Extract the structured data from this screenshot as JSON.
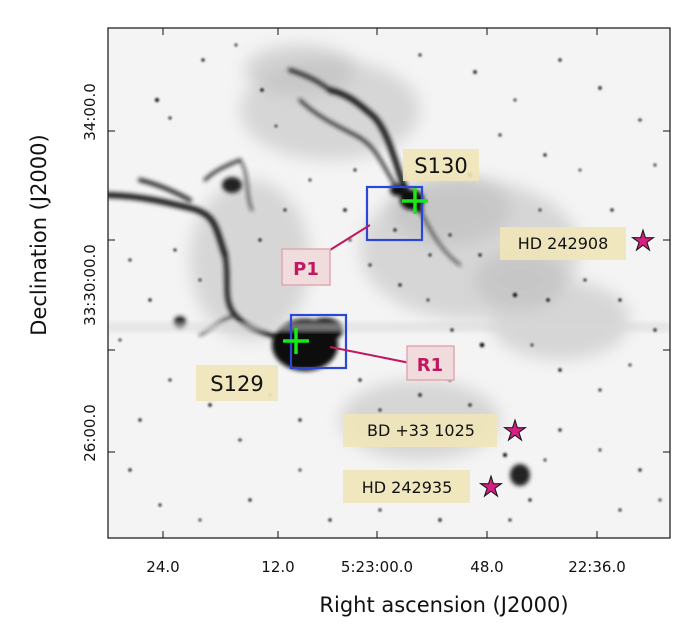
{
  "figure": {
    "xlabel": "Right ascension (J2000)",
    "ylabel": "Declination (J2000)",
    "x_ticks": [
      "24.0",
      "12.0",
      "5:23:00.0",
      "48.0",
      "22:36.0"
    ],
    "y_ticks": [
      "34:00.0",
      "33:30:00.0",
      "26:00.0"
    ]
  },
  "regions": {
    "s130": "S130",
    "s129": "S129"
  },
  "probes": {
    "p1": "P1",
    "r1": "R1"
  },
  "stars": {
    "hd242908": "HD 242908",
    "bd33": "BD +33 1025",
    "hd242935": "HD 242935"
  },
  "colors": {
    "label_bg": "#efe6b8",
    "box": "#2a47d6",
    "cross": "#18e818",
    "probe_text": "#c0175f",
    "probe_bg": "#f0dcdc",
    "probe_border": "#e3a7b3",
    "probe_line": "#c0175f",
    "star_fill": "#d61f83"
  }
}
